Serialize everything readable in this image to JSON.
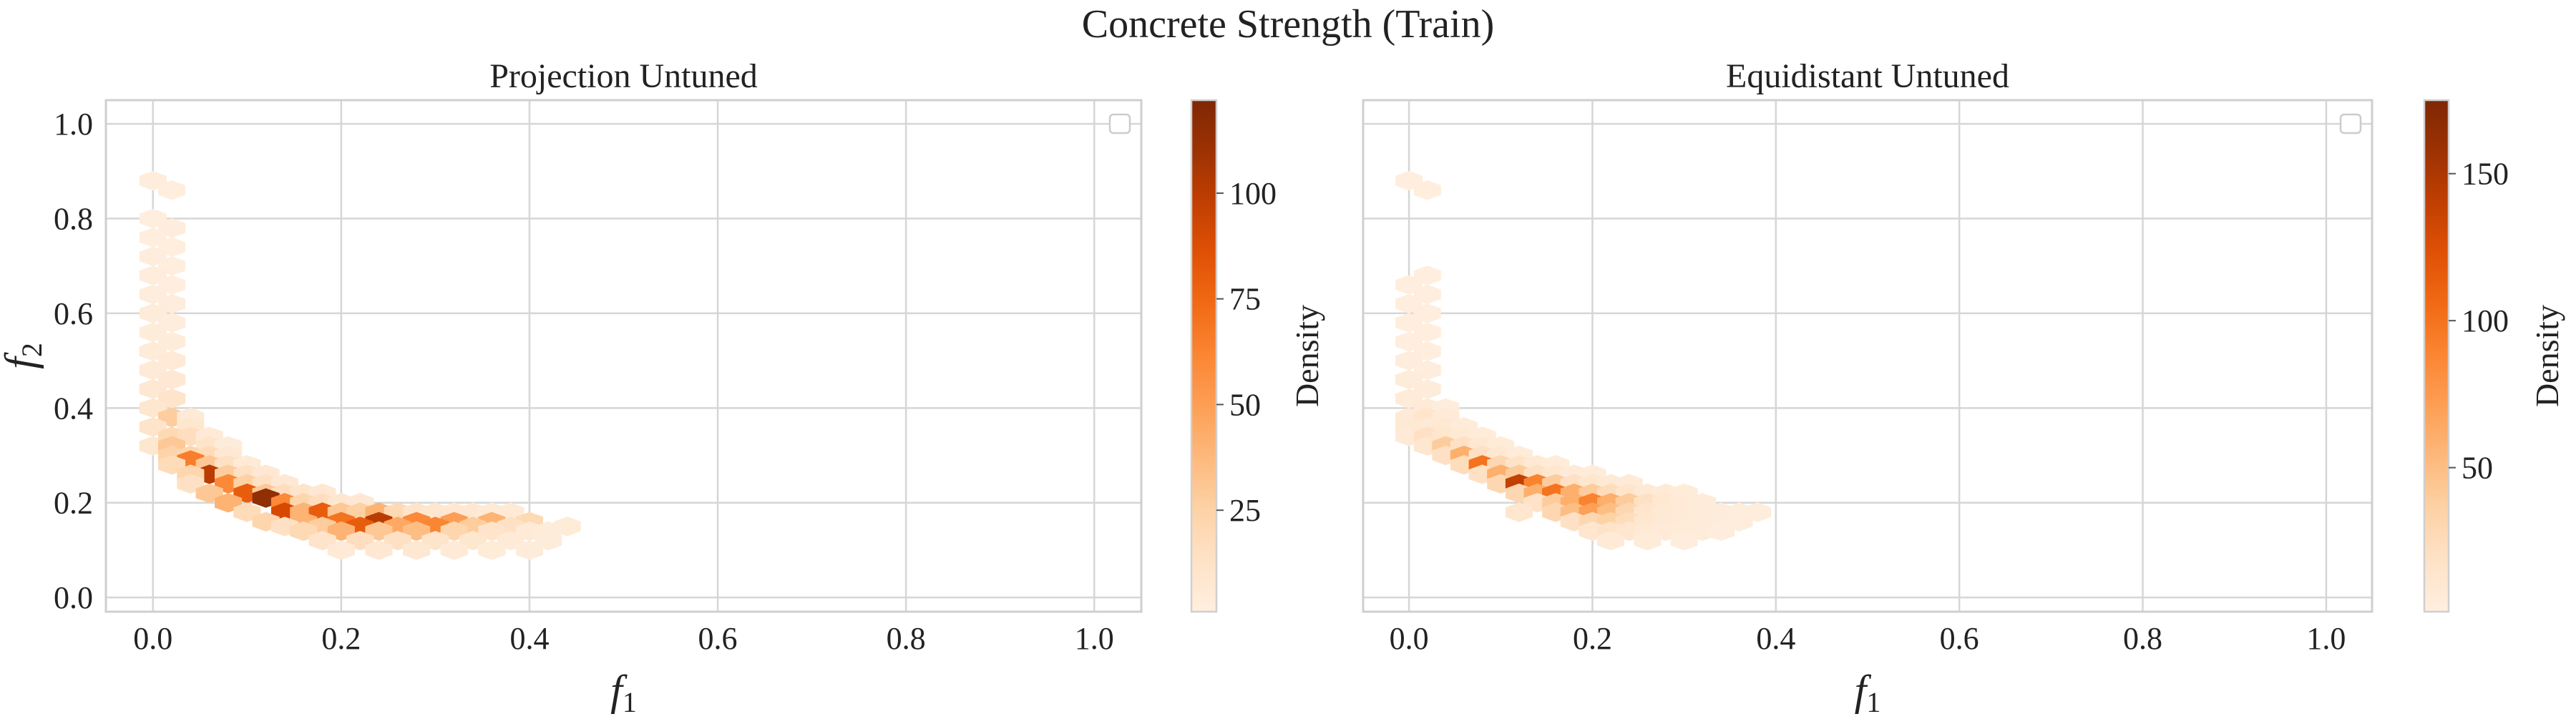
{
  "figure": {
    "title": "Concrete Strength (Train)"
  },
  "chart_data": [
    {
      "type": "heatmap",
      "subtype": "hexbin",
      "title": "Projection Untuned",
      "xlabel": "f",
      "xlabel_sub": "1",
      "ylabel": "f",
      "ylabel_sub": "2",
      "xlim": [
        -0.05,
        1.05
      ],
      "ylim": [
        -0.03,
        1.05
      ],
      "xticks": [
        "0.0",
        "0.2",
        "0.4",
        "0.6",
        "0.8",
        "1.0"
      ],
      "yticks": [
        "0.0",
        "0.2",
        "0.4",
        "0.6",
        "0.8",
        "1.0"
      ],
      "grid": true,
      "legend": "empty legend box, top-right",
      "colormap": "Oranges",
      "colorbar": {
        "label": "Density",
        "range": [
          1,
          122
        ],
        "ticks": [
          "25",
          "50",
          "75",
          "100"
        ]
      },
      "cells": [
        [
          0.0,
          0.88,
          3
        ],
        [
          0.02,
          0.86,
          2
        ],
        [
          0.0,
          0.8,
          2
        ],
        [
          0.02,
          0.78,
          3
        ],
        [
          0.0,
          0.76,
          2
        ],
        [
          0.02,
          0.74,
          2
        ],
        [
          0.0,
          0.72,
          3
        ],
        [
          0.02,
          0.7,
          2
        ],
        [
          0.0,
          0.68,
          3
        ],
        [
          0.02,
          0.66,
          2
        ],
        [
          0.0,
          0.64,
          3
        ],
        [
          0.02,
          0.62,
          3
        ],
        [
          0.0,
          0.6,
          4
        ],
        [
          0.02,
          0.58,
          3
        ],
        [
          0.0,
          0.56,
          4
        ],
        [
          0.02,
          0.54,
          4
        ],
        [
          0.0,
          0.52,
          5
        ],
        [
          0.02,
          0.5,
          6
        ],
        [
          0.0,
          0.48,
          6
        ],
        [
          0.02,
          0.46,
          8
        ],
        [
          0.0,
          0.44,
          8
        ],
        [
          0.02,
          0.42,
          12
        ],
        [
          0.0,
          0.4,
          10
        ],
        [
          0.02,
          0.38,
          28
        ],
        [
          0.04,
          0.38,
          6
        ],
        [
          0.0,
          0.36,
          12
        ],
        [
          0.04,
          0.36,
          10
        ],
        [
          0.0,
          0.32,
          10
        ],
        [
          0.02,
          0.34,
          20
        ],
        [
          0.04,
          0.34,
          16
        ],
        [
          0.06,
          0.34,
          6
        ],
        [
          0.02,
          0.32,
          30
        ],
        [
          0.06,
          0.32,
          12
        ],
        [
          0.08,
          0.32,
          4
        ],
        [
          0.02,
          0.3,
          24
        ],
        [
          0.04,
          0.3,
          22
        ],
        [
          0.06,
          0.3,
          18
        ],
        [
          0.08,
          0.3,
          8
        ],
        [
          0.04,
          0.29,
          65
        ],
        [
          0.02,
          0.28,
          18
        ],
        [
          0.06,
          0.28,
          30
        ],
        [
          0.08,
          0.28,
          14
        ],
        [
          0.1,
          0.28,
          6
        ],
        [
          0.06,
          0.26,
          100
        ],
        [
          0.04,
          0.26,
          22
        ],
        [
          0.08,
          0.26,
          28
        ],
        [
          0.1,
          0.26,
          14
        ],
        [
          0.12,
          0.26,
          8
        ],
        [
          0.04,
          0.24,
          14
        ],
        [
          0.08,
          0.24,
          60
        ],
        [
          0.1,
          0.24,
          26
        ],
        [
          0.12,
          0.24,
          14
        ],
        [
          0.14,
          0.24,
          8
        ],
        [
          0.06,
          0.22,
          30
        ],
        [
          0.1,
          0.22,
          80
        ],
        [
          0.12,
          0.22,
          30
        ],
        [
          0.14,
          0.22,
          16
        ],
        [
          0.16,
          0.22,
          12
        ],
        [
          0.18,
          0.22,
          8
        ],
        [
          0.08,
          0.2,
          40
        ],
        [
          0.12,
          0.21,
          115
        ],
        [
          0.14,
          0.2,
          60
        ],
        [
          0.16,
          0.2,
          22
        ],
        [
          0.18,
          0.2,
          16
        ],
        [
          0.2,
          0.2,
          10
        ],
        [
          0.22,
          0.2,
          8
        ],
        [
          0.1,
          0.18,
          18
        ],
        [
          0.14,
          0.18,
          90
        ],
        [
          0.16,
          0.18,
          40
        ],
        [
          0.18,
          0.18,
          80
        ],
        [
          0.2,
          0.18,
          30
        ],
        [
          0.22,
          0.18,
          26
        ],
        [
          0.24,
          0.18,
          40
        ],
        [
          0.26,
          0.18,
          20
        ],
        [
          0.28,
          0.18,
          12
        ],
        [
          0.3,
          0.18,
          10
        ],
        [
          0.32,
          0.18,
          8
        ],
        [
          0.34,
          0.18,
          8
        ],
        [
          0.36,
          0.18,
          6
        ],
        [
          0.38,
          0.18,
          6
        ],
        [
          0.12,
          0.16,
          22
        ],
        [
          0.16,
          0.16,
          40
        ],
        [
          0.2,
          0.16,
          70
        ],
        [
          0.24,
          0.16,
          100
        ],
        [
          0.28,
          0.16,
          60
        ],
        [
          0.32,
          0.16,
          50
        ],
        [
          0.36,
          0.16,
          40
        ],
        [
          0.4,
          0.16,
          20
        ],
        [
          0.14,
          0.15,
          14
        ],
        [
          0.18,
          0.15,
          28
        ],
        [
          0.22,
          0.15,
          80
        ],
        [
          0.26,
          0.15,
          45
        ],
        [
          0.3,
          0.15,
          62
        ],
        [
          0.34,
          0.15,
          28
        ],
        [
          0.38,
          0.15,
          14
        ],
        [
          0.44,
          0.15,
          5
        ],
        [
          0.16,
          0.14,
          20
        ],
        [
          0.2,
          0.14,
          40
        ],
        [
          0.24,
          0.14,
          30
        ],
        [
          0.28,
          0.14,
          35
        ],
        [
          0.32,
          0.14,
          22
        ],
        [
          0.36,
          0.14,
          12
        ],
        [
          0.4,
          0.14,
          6
        ],
        [
          0.42,
          0.14,
          4
        ],
        [
          0.18,
          0.12,
          12
        ],
        [
          0.22,
          0.12,
          16
        ],
        [
          0.26,
          0.12,
          14
        ],
        [
          0.3,
          0.12,
          12
        ],
        [
          0.34,
          0.12,
          10
        ],
        [
          0.38,
          0.12,
          6
        ],
        [
          0.42,
          0.12,
          4
        ],
        [
          0.2,
          0.1,
          6
        ],
        [
          0.24,
          0.1,
          8
        ],
        [
          0.28,
          0.1,
          8
        ],
        [
          0.32,
          0.1,
          6
        ],
        [
          0.36,
          0.1,
          5
        ],
        [
          0.4,
          0.1,
          4
        ]
      ]
    },
    {
      "type": "heatmap",
      "subtype": "hexbin",
      "title": "Equidistant Untuned",
      "xlabel": "f",
      "xlabel_sub": "1",
      "ylabel": "",
      "ylabel_sub": "",
      "xlim": [
        -0.05,
        1.05
      ],
      "ylim": [
        -0.03,
        1.05
      ],
      "xticks": [
        "0.0",
        "0.2",
        "0.4",
        "0.6",
        "0.8",
        "1.0"
      ],
      "yticks": [],
      "grid": true,
      "legend": "empty legend box, top-right",
      "colormap": "Oranges",
      "colorbar": {
        "label": "Density",
        "range": [
          1,
          175
        ],
        "ticks": [
          "50",
          "100",
          "150"
        ]
      },
      "cells": [
        [
          0.0,
          0.88,
          3
        ],
        [
          0.02,
          0.86,
          2
        ],
        [
          0.02,
          0.68,
          2
        ],
        [
          0.0,
          0.66,
          2
        ],
        [
          0.02,
          0.64,
          2
        ],
        [
          0.0,
          0.62,
          3
        ],
        [
          0.02,
          0.6,
          2
        ],
        [
          0.0,
          0.58,
          3
        ],
        [
          0.02,
          0.56,
          3
        ],
        [
          0.0,
          0.54,
          3
        ],
        [
          0.02,
          0.52,
          3
        ],
        [
          0.0,
          0.5,
          4
        ],
        [
          0.02,
          0.48,
          4
        ],
        [
          0.0,
          0.46,
          5
        ],
        [
          0.02,
          0.44,
          5
        ],
        [
          0.0,
          0.42,
          6
        ],
        [
          0.02,
          0.4,
          8
        ],
        [
          0.04,
          0.4,
          4
        ],
        [
          0.0,
          0.38,
          8
        ],
        [
          0.02,
          0.38,
          16
        ],
        [
          0.04,
          0.38,
          8
        ],
        [
          0.0,
          0.36,
          10
        ],
        [
          0.02,
          0.36,
          10
        ],
        [
          0.04,
          0.36,
          12
        ],
        [
          0.06,
          0.36,
          6
        ],
        [
          0.0,
          0.34,
          8
        ],
        [
          0.02,
          0.34,
          20
        ],
        [
          0.04,
          0.34,
          14
        ],
        [
          0.06,
          0.34,
          10
        ],
        [
          0.08,
          0.34,
          6
        ],
        [
          0.02,
          0.32,
          14
        ],
        [
          0.04,
          0.32,
          40
        ],
        [
          0.06,
          0.32,
          20
        ],
        [
          0.08,
          0.32,
          12
        ],
        [
          0.1,
          0.32,
          6
        ],
        [
          0.04,
          0.3,
          20
        ],
        [
          0.06,
          0.3,
          60
        ],
        [
          0.08,
          0.3,
          20
        ],
        [
          0.1,
          0.3,
          12
        ],
        [
          0.12,
          0.3,
          6
        ],
        [
          0.06,
          0.28,
          24
        ],
        [
          0.08,
          0.28,
          100
        ],
        [
          0.1,
          0.28,
          30
        ],
        [
          0.12,
          0.28,
          18
        ],
        [
          0.14,
          0.28,
          10
        ],
        [
          0.16,
          0.28,
          6
        ],
        [
          0.08,
          0.26,
          20
        ],
        [
          0.1,
          0.26,
          60
        ],
        [
          0.12,
          0.26,
          40
        ],
        [
          0.14,
          0.26,
          20
        ],
        [
          0.16,
          0.26,
          14
        ],
        [
          0.18,
          0.26,
          8
        ],
        [
          0.2,
          0.26,
          6
        ],
        [
          0.1,
          0.24,
          30
        ],
        [
          0.12,
          0.24,
          140
        ],
        [
          0.14,
          0.24,
          90
        ],
        [
          0.16,
          0.24,
          40
        ],
        [
          0.18,
          0.24,
          20
        ],
        [
          0.2,
          0.24,
          14
        ],
        [
          0.22,
          0.24,
          10
        ],
        [
          0.24,
          0.24,
          8
        ],
        [
          0.12,
          0.22,
          30
        ],
        [
          0.14,
          0.22,
          60
        ],
        [
          0.16,
          0.22,
          100
        ],
        [
          0.18,
          0.22,
          60
        ],
        [
          0.2,
          0.22,
          40
        ],
        [
          0.22,
          0.22,
          24
        ],
        [
          0.24,
          0.22,
          16
        ],
        [
          0.26,
          0.22,
          10
        ],
        [
          0.28,
          0.22,
          8
        ],
        [
          0.3,
          0.22,
          6
        ],
        [
          0.14,
          0.2,
          18
        ],
        [
          0.16,
          0.2,
          40
        ],
        [
          0.18,
          0.2,
          60
        ],
        [
          0.2,
          0.2,
          90
        ],
        [
          0.22,
          0.2,
          60
        ],
        [
          0.24,
          0.2,
          40
        ],
        [
          0.26,
          0.2,
          20
        ],
        [
          0.28,
          0.2,
          12
        ],
        [
          0.3,
          0.2,
          8
        ],
        [
          0.32,
          0.2,
          5
        ],
        [
          0.12,
          0.18,
          14
        ],
        [
          0.16,
          0.18,
          30
        ],
        [
          0.18,
          0.18,
          50
        ],
        [
          0.2,
          0.18,
          70
        ],
        [
          0.22,
          0.18,
          50
        ],
        [
          0.24,
          0.18,
          30
        ],
        [
          0.26,
          0.18,
          16
        ],
        [
          0.28,
          0.18,
          10
        ],
        [
          0.3,
          0.18,
          8
        ],
        [
          0.32,
          0.18,
          6
        ],
        [
          0.34,
          0.18,
          5
        ],
        [
          0.36,
          0.18,
          4
        ],
        [
          0.38,
          0.18,
          4
        ],
        [
          0.18,
          0.16,
          20
        ],
        [
          0.2,
          0.16,
          30
        ],
        [
          0.22,
          0.16,
          36
        ],
        [
          0.24,
          0.16,
          24
        ],
        [
          0.26,
          0.16,
          14
        ],
        [
          0.28,
          0.16,
          10
        ],
        [
          0.3,
          0.16,
          8
        ],
        [
          0.32,
          0.16,
          6
        ],
        [
          0.34,
          0.16,
          5
        ],
        [
          0.36,
          0.16,
          4
        ],
        [
          0.2,
          0.14,
          14
        ],
        [
          0.22,
          0.14,
          18
        ],
        [
          0.24,
          0.14,
          14
        ],
        [
          0.26,
          0.14,
          10
        ],
        [
          0.28,
          0.14,
          8
        ],
        [
          0.3,
          0.14,
          6
        ],
        [
          0.32,
          0.14,
          5
        ],
        [
          0.34,
          0.14,
          4
        ],
        [
          0.22,
          0.12,
          8
        ],
        [
          0.26,
          0.12,
          6
        ],
        [
          0.3,
          0.12,
          4
        ]
      ]
    }
  ]
}
